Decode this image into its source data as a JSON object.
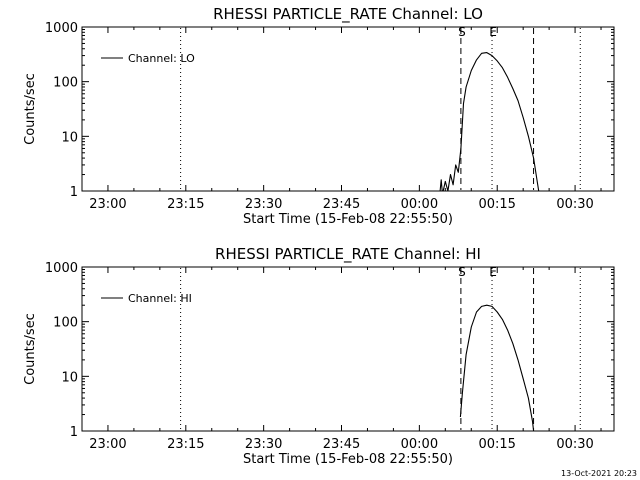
{
  "footer": {
    "timestamp": "13-Oct-2021 20:23"
  },
  "colors": {
    "line": "#000000",
    "background": "#ffffff"
  },
  "chart_data": [
    {
      "type": "line",
      "title": "RHESSI PARTICLE_RATE Channel: LO",
      "xlabel": "Start Time (15-Feb-08 22:55:50)",
      "ylabel": "Counts/sec",
      "y_scale": "log",
      "ylim": [
        1,
        1000
      ],
      "x_tick_labels": [
        "23:00",
        "23:15",
        "23:30",
        "23:45",
        "00:00",
        "00:15",
        "00:30"
      ],
      "x_ticks": [
        "23:00",
        "23:15",
        "23:30",
        "23:45",
        "00:00",
        "00:15",
        "00:30"
      ],
      "y_tick_labels": [
        "1",
        "10",
        "100",
        "1000"
      ],
      "y_ticks": [
        1,
        10,
        100,
        1000
      ],
      "legend": {
        "entries": [
          "Channel: LO"
        ],
        "placement": "top-left"
      },
      "markers": [
        {
          "time": "23:14",
          "style": "dotted",
          "label": ""
        },
        {
          "time": "00:08",
          "style": "dashed",
          "label": "S"
        },
        {
          "time": "00:14",
          "style": "dotted",
          "label": "E"
        },
        {
          "time": "00:22",
          "style": "dashed",
          "label": ""
        },
        {
          "time": "00:31",
          "style": "dotted",
          "label": ""
        }
      ],
      "series": [
        {
          "name": "Channel: LO",
          "x": [
            "00:04",
            "00:04.2",
            "00:04.4",
            "00:04.6",
            "00:05",
            "00:05.5",
            "00:06",
            "00:06.5",
            "00:07",
            "00:07.5",
            "00:08",
            "00:08.5",
            "00:09",
            "00:10",
            "00:11",
            "00:12",
            "00:13",
            "00:14",
            "00:15",
            "00:16",
            "00:17",
            "00:18",
            "00:19",
            "00:20",
            "00:21",
            "00:22",
            "00:22.7",
            "00:23"
          ],
          "y": [
            1,
            1.6,
            1,
            1,
            1.5,
            1,
            2,
            1.3,
            3,
            2.2,
            6,
            40,
            80,
            160,
            250,
            330,
            340,
            300,
            240,
            180,
            120,
            75,
            45,
            22,
            10,
            4,
            1.5,
            1
          ]
        }
      ]
    },
    {
      "type": "line",
      "title": "RHESSI PARTICLE_RATE Channel: HI",
      "xlabel": "Start Time (15-Feb-08 22:55:50)",
      "ylabel": "Counts/sec",
      "y_scale": "log",
      "ylim": [
        1,
        1000
      ],
      "x_tick_labels": [
        "23:00",
        "23:15",
        "23:30",
        "23:45",
        "00:00",
        "00:15",
        "00:30"
      ],
      "x_ticks": [
        "23:00",
        "23:15",
        "23:30",
        "23:45",
        "00:00",
        "00:15",
        "00:30"
      ],
      "y_tick_labels": [
        "1",
        "10",
        "100",
        "1000"
      ],
      "y_ticks": [
        1,
        10,
        100,
        1000
      ],
      "legend": {
        "entries": [
          "Channel: HI"
        ],
        "placement": "top-left"
      },
      "markers": [
        {
          "time": "23:14",
          "style": "dotted",
          "label": ""
        },
        {
          "time": "00:08",
          "style": "dashed",
          "label": "S"
        },
        {
          "time": "00:14",
          "style": "dotted",
          "label": "E"
        },
        {
          "time": "00:22",
          "style": "dashed",
          "label": ""
        },
        {
          "time": "00:31",
          "style": "dotted",
          "label": ""
        }
      ],
      "series": [
        {
          "name": "Channel: HI",
          "x": [
            "00:07.9",
            "00:08.3",
            "00:09",
            "00:10",
            "00:11",
            "00:12",
            "00:13",
            "00:14",
            "00:15",
            "00:16",
            "00:17",
            "00:18",
            "00:19",
            "00:20",
            "00:21",
            "00:21.8",
            "00:22"
          ],
          "y": [
            1.8,
            5,
            25,
            80,
            150,
            190,
            200,
            190,
            150,
            110,
            70,
            40,
            20,
            9,
            4,
            1.5,
            1
          ]
        }
      ]
    }
  ]
}
